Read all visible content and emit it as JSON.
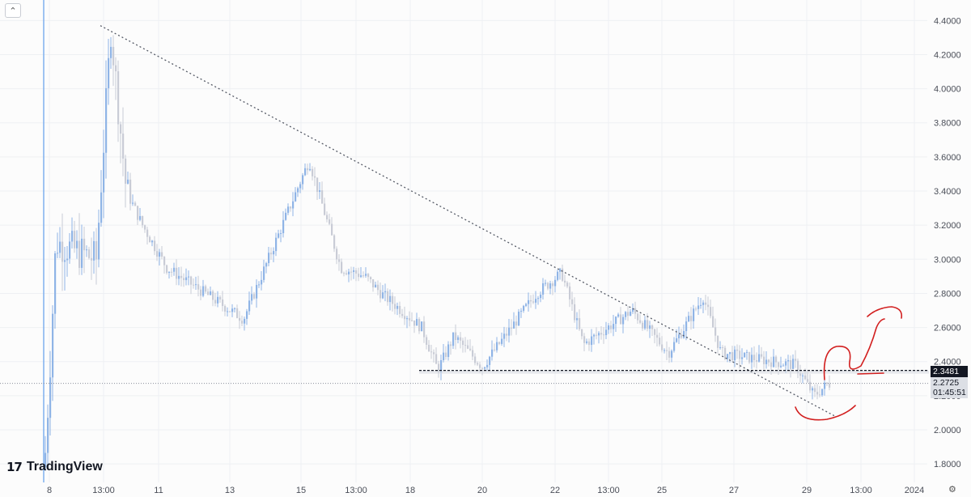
{
  "ui": {
    "collapse_icon": "chevron-up-icon",
    "logo_text": "TradingView",
    "logo_mark": "17",
    "settings_icon": "gear-icon"
  },
  "price_labels": {
    "level": "2.3481",
    "last_price": "2.2725",
    "countdown": "01:45:51"
  },
  "colors": {
    "up": "#8fb4e6",
    "down": "#c9ccd6",
    "annotation": "#d21f1f",
    "trendline": "#555a66"
  },
  "chart_data": {
    "type": "candlestick",
    "ylim": [
      1.72,
      4.46
    ],
    "y_ticks": [
      "1.8000",
      "2.0000",
      "2.2000",
      "2.4000",
      "2.6000",
      "2.8000",
      "3.0000",
      "3.2000",
      "3.4000",
      "3.6000",
      "3.8000",
      "4.0000",
      "4.2000",
      "4.4000"
    ],
    "x_ticks": [
      "8",
      "13:00",
      "11",
      "13",
      "15",
      "13:00",
      "18",
      "20",
      "22",
      "13:00",
      "25",
      "27",
      "29",
      "13:00",
      "2024"
    ],
    "key_points": [
      {
        "x": "8",
        "y": 1.78
      },
      {
        "x": "8",
        "y": 2.3
      },
      {
        "x": "8",
        "y": 3.1
      },
      {
        "x": "13:00",
        "y": 3.0
      },
      {
        "x": "13:00",
        "y": 4.35
      },
      {
        "x": "13:00",
        "y": 3.4
      },
      {
        "x": "11",
        "y": 3.2
      },
      {
        "x": "11",
        "y": 2.95
      },
      {
        "x": "13",
        "y": 2.7
      },
      {
        "x": "13",
        "y": 2.65
      },
      {
        "x": "15",
        "y": 3.58
      },
      {
        "x": "15",
        "y": 2.95
      },
      {
        "x": "13:00",
        "y": 2.9
      },
      {
        "x": "13:00",
        "y": 2.8
      },
      {
        "x": "18",
        "y": 2.6
      },
      {
        "x": "18",
        "y": 2.35
      },
      {
        "x": "20",
        "y": 2.55
      },
      {
        "x": "20",
        "y": 2.37
      },
      {
        "x": "22",
        "y": 2.8
      },
      {
        "x": "22",
        "y": 2.92
      },
      {
        "x": "13:00",
        "y": 2.5
      },
      {
        "x": "13:00",
        "y": 2.7
      },
      {
        "x": "25",
        "y": 2.45
      },
      {
        "x": "27",
        "y": 2.78
      },
      {
        "x": "27",
        "y": 2.45
      },
      {
        "x": "29",
        "y": 2.38
      },
      {
        "x": "29",
        "y": 2.2
      },
      {
        "x": "29",
        "y": 2.27
      }
    ],
    "trendline": {
      "from": 4.37,
      "to": 2.08,
      "style": "dotted"
    },
    "support_level": 2.3481,
    "last_price": 2.2725
  }
}
